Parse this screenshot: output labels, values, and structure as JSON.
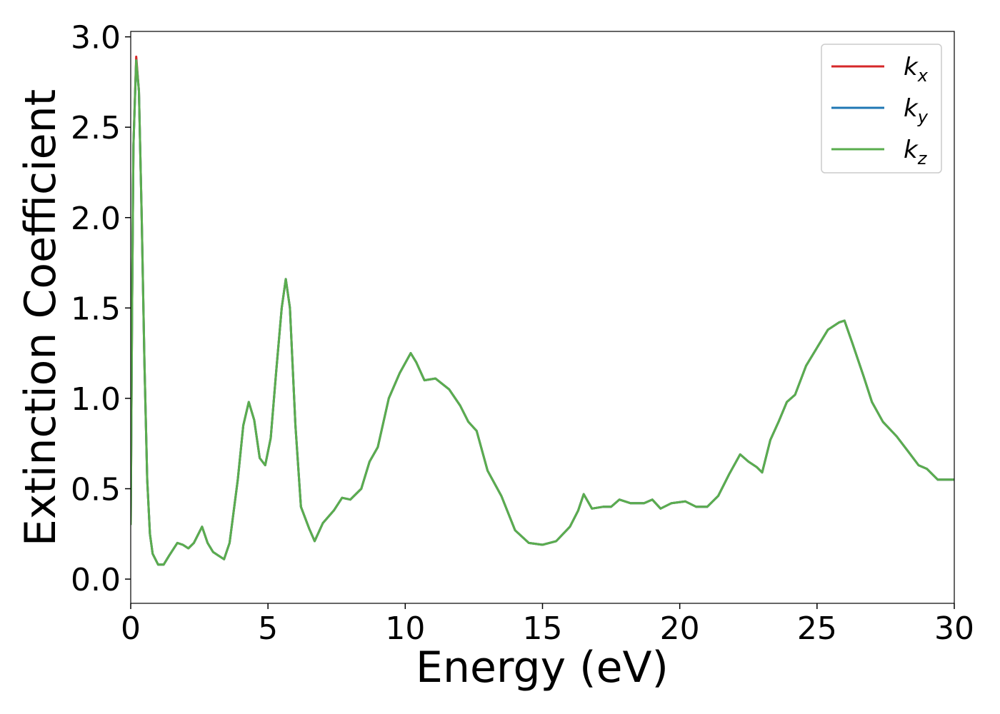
{
  "chart_data": {
    "type": "line",
    "x_label": "Energy (eV)",
    "y_label": "Extinction Coefficient",
    "xlim": [
      0,
      30
    ],
    "ylim": [
      -0.134,
      3.03
    ],
    "xticks": [
      0,
      5,
      10,
      15,
      20,
      25,
      30
    ],
    "yticks": [
      {
        "value": 0,
        "label": "0.0"
      },
      0.5,
      {
        "value": 1,
        "label": "1.0"
      },
      1.5,
      {
        "value": 2,
        "label": "2.0"
      },
      2.5,
      {
        "value": 3,
        "label": "3.0"
      }
    ],
    "legend": "upper right",
    "x": [
      0,
      0.05,
      0.1,
      0.2,
      0.3,
      0.4,
      0.5,
      0.6,
      0.7,
      0.8,
      1.0,
      1.2,
      1.4,
      1.7,
      1.9,
      2.1,
      2.3,
      2.6,
      2.8,
      3.0,
      3.2,
      3.4,
      3.6,
      3.9,
      4.1,
      4.3,
      4.5,
      4.7,
      4.9,
      5.1,
      5.3,
      5.5,
      5.65,
      5.8,
      6.0,
      6.2,
      6.5,
      6.7,
      7.0,
      7.4,
      7.7,
      8.0,
      8.4,
      8.7,
      9.0,
      9.4,
      9.8,
      10.2,
      10.4,
      10.7,
      11.1,
      11.6,
      12.0,
      12.3,
      12.6,
      13.0,
      13.5,
      14.0,
      14.5,
      15.0,
      15.5,
      16.0,
      16.3,
      16.5,
      16.8,
      17.2,
      17.5,
      17.8,
      18.2,
      18.7,
      19.0,
      19.3,
      19.7,
      20.2,
      20.6,
      21.0,
      21.4,
      21.8,
      22.2,
      22.5,
      22.8,
      23.0,
      23.3,
      23.6,
      23.9,
      24.2,
      24.6,
      25.0,
      25.4,
      25.8,
      26.0,
      26.3,
      26.7,
      27.0,
      27.4,
      27.9,
      28.3,
      28.7,
      29.0,
      29.4,
      29.7,
      30.0
    ],
    "series": [
      {
        "name": "kx",
        "color": "#d62728",
        "values": [
          0.3,
          1.5,
          2.4,
          2.89,
          2.7,
          2.0,
          1.2,
          0.55,
          0.25,
          0.14,
          0.08,
          0.08,
          0.13,
          0.2,
          0.19,
          0.17,
          0.2,
          0.29,
          0.2,
          0.15,
          0.13,
          0.11,
          0.2,
          0.55,
          0.85,
          0.98,
          0.88,
          0.67,
          0.63,
          0.78,
          1.15,
          1.5,
          1.66,
          1.5,
          0.85,
          0.4,
          0.28,
          0.21,
          0.31,
          0.38,
          0.45,
          0.44,
          0.5,
          0.65,
          0.73,
          1.0,
          1.14,
          1.25,
          1.2,
          1.1,
          1.11,
          1.05,
          0.96,
          0.87,
          0.82,
          0.6,
          0.46,
          0.27,
          0.2,
          0.19,
          0.21,
          0.29,
          0.38,
          0.47,
          0.39,
          0.4,
          0.4,
          0.44,
          0.42,
          0.42,
          0.44,
          0.39,
          0.42,
          0.43,
          0.4,
          0.4,
          0.46,
          0.58,
          0.69,
          0.65,
          0.62,
          0.59,
          0.77,
          0.87,
          0.98,
          1.02,
          1.18,
          1.28,
          1.38,
          1.42,
          1.43,
          1.3,
          1.12,
          0.98,
          0.87,
          0.79,
          0.71,
          0.63,
          0.61,
          0.55,
          0.55,
          0.55
        ]
      },
      {
        "name": "ky",
        "color": "#1f77b4",
        "values": [
          0.3,
          1.5,
          2.4,
          2.87,
          2.7,
          2.0,
          1.2,
          0.55,
          0.25,
          0.14,
          0.08,
          0.08,
          0.13,
          0.2,
          0.19,
          0.17,
          0.2,
          0.29,
          0.2,
          0.15,
          0.13,
          0.11,
          0.2,
          0.55,
          0.85,
          0.98,
          0.88,
          0.67,
          0.63,
          0.78,
          1.15,
          1.5,
          1.66,
          1.5,
          0.85,
          0.4,
          0.28,
          0.21,
          0.31,
          0.38,
          0.45,
          0.44,
          0.5,
          0.65,
          0.73,
          1.0,
          1.14,
          1.25,
          1.2,
          1.1,
          1.11,
          1.05,
          0.96,
          0.87,
          0.82,
          0.6,
          0.46,
          0.27,
          0.2,
          0.19,
          0.21,
          0.29,
          0.38,
          0.47,
          0.39,
          0.4,
          0.4,
          0.44,
          0.42,
          0.42,
          0.44,
          0.39,
          0.42,
          0.43,
          0.4,
          0.4,
          0.46,
          0.58,
          0.69,
          0.65,
          0.62,
          0.59,
          0.77,
          0.87,
          0.98,
          1.02,
          1.18,
          1.28,
          1.38,
          1.42,
          1.43,
          1.3,
          1.12,
          0.98,
          0.87,
          0.79,
          0.71,
          0.63,
          0.61,
          0.55,
          0.55,
          0.55
        ]
      },
      {
        "name": "kz",
        "color": "#5aad4e",
        "values": [
          0.3,
          1.5,
          2.4,
          2.87,
          2.7,
          2.0,
          1.2,
          0.55,
          0.25,
          0.14,
          0.08,
          0.08,
          0.13,
          0.2,
          0.19,
          0.17,
          0.2,
          0.29,
          0.2,
          0.15,
          0.13,
          0.11,
          0.2,
          0.55,
          0.85,
          0.98,
          0.88,
          0.67,
          0.63,
          0.78,
          1.15,
          1.5,
          1.66,
          1.5,
          0.85,
          0.4,
          0.28,
          0.21,
          0.31,
          0.38,
          0.45,
          0.44,
          0.5,
          0.65,
          0.73,
          1.0,
          1.14,
          1.25,
          1.2,
          1.1,
          1.11,
          1.05,
          0.96,
          0.87,
          0.82,
          0.6,
          0.46,
          0.27,
          0.2,
          0.19,
          0.21,
          0.29,
          0.38,
          0.47,
          0.39,
          0.4,
          0.4,
          0.44,
          0.42,
          0.42,
          0.44,
          0.39,
          0.42,
          0.43,
          0.4,
          0.4,
          0.46,
          0.58,
          0.69,
          0.65,
          0.62,
          0.59,
          0.77,
          0.87,
          0.98,
          1.02,
          1.18,
          1.28,
          1.38,
          1.42,
          1.43,
          1.3,
          1.12,
          0.98,
          0.87,
          0.79,
          0.71,
          0.63,
          0.61,
          0.55,
          0.55,
          0.55
        ]
      }
    ]
  }
}
